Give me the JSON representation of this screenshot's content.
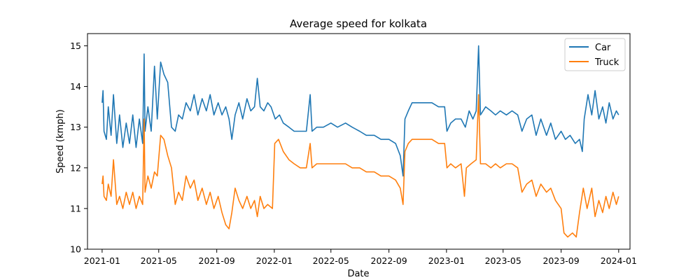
{
  "chart_data": {
    "type": "line",
    "title": "Average speed for kolkata",
    "xlabel": "Date",
    "ylabel": "Speed (kmph)",
    "x_range": [
      "2020-12-01",
      "2024-01-25"
    ],
    "ylim": [
      10.0,
      15.3
    ],
    "x_ticks": [
      "2021-01",
      "2021-05",
      "2021-09",
      "2022-01",
      "2022-05",
      "2022-09",
      "2023-01",
      "2023-05",
      "2023-09",
      "2024-01"
    ],
    "y_ticks": [
      10,
      11,
      12,
      13,
      14,
      15
    ],
    "grid": false,
    "legend_position": "top-right",
    "series": [
      {
        "name": "Car",
        "color": "#1f77b4",
        "points": [
          [
            "2021-01-01",
            13.6
          ],
          [
            "2021-01-03",
            13.9
          ],
          [
            "2021-01-05",
            12.9
          ],
          [
            "2021-01-10",
            12.7
          ],
          [
            "2021-01-14",
            13.5
          ],
          [
            "2021-01-20",
            12.8
          ],
          [
            "2021-01-25",
            13.8
          ],
          [
            "2021-02-01",
            12.6
          ],
          [
            "2021-02-07",
            13.3
          ],
          [
            "2021-02-14",
            12.5
          ],
          [
            "2021-02-21",
            13.1
          ],
          [
            "2021-02-28",
            12.6
          ],
          [
            "2021-03-07",
            13.3
          ],
          [
            "2021-03-14",
            12.5
          ],
          [
            "2021-03-21",
            13.2
          ],
          [
            "2021-03-28",
            12.6
          ],
          [
            "2021-03-31",
            14.8
          ],
          [
            "2021-04-02",
            12.9
          ],
          [
            "2021-04-08",
            13.5
          ],
          [
            "2021-04-15",
            12.9
          ],
          [
            "2021-04-22",
            14.5
          ],
          [
            "2021-04-28",
            13.2
          ],
          [
            "2021-05-05",
            14.6
          ],
          [
            "2021-05-12",
            14.3
          ],
          [
            "2021-05-20",
            14.1
          ],
          [
            "2021-05-28",
            13.0
          ],
          [
            "2021-06-05",
            12.9
          ],
          [
            "2021-06-12",
            13.3
          ],
          [
            "2021-06-20",
            13.2
          ],
          [
            "2021-06-28",
            13.6
          ],
          [
            "2021-07-07",
            13.4
          ],
          [
            "2021-07-15",
            13.8
          ],
          [
            "2021-07-23",
            13.3
          ],
          [
            "2021-08-01",
            13.7
          ],
          [
            "2021-08-10",
            13.4
          ],
          [
            "2021-08-18",
            13.8
          ],
          [
            "2021-08-26",
            13.3
          ],
          [
            "2021-09-04",
            13.6
          ],
          [
            "2021-09-12",
            13.3
          ],
          [
            "2021-09-20",
            13.5
          ],
          [
            "2021-09-27",
            13.2
          ],
          [
            "2021-10-03",
            12.7
          ],
          [
            "2021-10-10",
            13.3
          ],
          [
            "2021-10-18",
            13.6
          ],
          [
            "2021-10-26",
            13.2
          ],
          [
            "2021-11-04",
            13.7
          ],
          [
            "2021-11-12",
            13.4
          ],
          [
            "2021-11-20",
            13.5
          ],
          [
            "2021-11-26",
            14.2
          ],
          [
            "2021-12-02",
            13.5
          ],
          [
            "2021-12-10",
            13.4
          ],
          [
            "2021-12-18",
            13.6
          ],
          [
            "2021-12-25",
            13.5
          ],
          [
            "2022-01-03",
            13.2
          ],
          [
            "2022-01-12",
            13.3
          ],
          [
            "2022-01-20",
            13.1
          ],
          [
            "2022-02-01",
            13.0
          ],
          [
            "2022-02-12",
            12.9
          ],
          [
            "2022-02-25",
            12.9
          ],
          [
            "2022-03-10",
            12.9
          ],
          [
            "2022-03-18",
            13.8
          ],
          [
            "2022-03-22",
            12.9
          ],
          [
            "2022-04-01",
            13.0
          ],
          [
            "2022-04-15",
            13.0
          ],
          [
            "2022-05-01",
            13.1
          ],
          [
            "2022-05-15",
            13.0
          ],
          [
            "2022-06-01",
            13.1
          ],
          [
            "2022-06-15",
            13.0
          ],
          [
            "2022-07-01",
            12.9
          ],
          [
            "2022-07-15",
            12.8
          ],
          [
            "2022-08-01",
            12.8
          ],
          [
            "2022-08-15",
            12.7
          ],
          [
            "2022-09-01",
            12.7
          ],
          [
            "2022-09-15",
            12.6
          ],
          [
            "2022-09-25",
            12.3
          ],
          [
            "2022-10-01",
            11.8
          ],
          [
            "2022-10-05",
            13.2
          ],
          [
            "2022-10-12",
            13.4
          ],
          [
            "2022-10-20",
            13.6
          ],
          [
            "2022-11-01",
            13.6
          ],
          [
            "2022-11-15",
            13.6
          ],
          [
            "2022-12-01",
            13.6
          ],
          [
            "2022-12-15",
            13.5
          ],
          [
            "2022-12-28",
            13.5
          ],
          [
            "2023-01-02",
            12.9
          ],
          [
            "2023-01-10",
            13.1
          ],
          [
            "2023-01-20",
            13.2
          ],
          [
            "2023-02-01",
            13.2
          ],
          [
            "2023-02-10",
            13.0
          ],
          [
            "2023-02-18",
            13.4
          ],
          [
            "2023-02-26",
            13.2
          ],
          [
            "2023-03-05",
            13.4
          ],
          [
            "2023-03-10",
            15.0
          ],
          [
            "2023-03-14",
            13.3
          ],
          [
            "2023-03-25",
            13.5
          ],
          [
            "2023-04-05",
            13.4
          ],
          [
            "2023-04-15",
            13.3
          ],
          [
            "2023-04-25",
            13.4
          ],
          [
            "2023-05-08",
            13.3
          ],
          [
            "2023-05-20",
            13.4
          ],
          [
            "2023-06-01",
            13.3
          ],
          [
            "2023-06-10",
            12.9
          ],
          [
            "2023-06-20",
            13.2
          ],
          [
            "2023-07-01",
            13.3
          ],
          [
            "2023-07-10",
            12.8
          ],
          [
            "2023-07-20",
            13.2
          ],
          [
            "2023-08-01",
            12.8
          ],
          [
            "2023-08-10",
            13.1
          ],
          [
            "2023-08-20",
            12.7
          ],
          [
            "2023-09-01",
            12.9
          ],
          [
            "2023-09-10",
            12.7
          ],
          [
            "2023-09-20",
            12.8
          ],
          [
            "2023-10-01",
            12.6
          ],
          [
            "2023-10-10",
            12.7
          ],
          [
            "2023-10-16",
            12.4
          ],
          [
            "2023-10-20",
            13.2
          ],
          [
            "2023-10-28",
            13.8
          ],
          [
            "2023-11-05",
            13.3
          ],
          [
            "2023-11-12",
            13.9
          ],
          [
            "2023-11-20",
            13.2
          ],
          [
            "2023-11-28",
            13.5
          ],
          [
            "2023-12-05",
            13.1
          ],
          [
            "2023-12-12",
            13.6
          ],
          [
            "2023-12-20",
            13.2
          ],
          [
            "2023-12-27",
            13.4
          ],
          [
            "2024-01-01",
            13.3
          ]
        ]
      },
      {
        "name": "Truck",
        "color": "#ff7f0e",
        "points": [
          [
            "2021-01-01",
            11.6
          ],
          [
            "2021-01-03",
            11.8
          ],
          [
            "2021-01-05",
            11.3
          ],
          [
            "2021-01-10",
            11.2
          ],
          [
            "2021-01-14",
            11.6
          ],
          [
            "2021-01-20",
            11.3
          ],
          [
            "2021-01-25",
            12.2
          ],
          [
            "2021-02-01",
            11.1
          ],
          [
            "2021-02-07",
            11.3
          ],
          [
            "2021-02-14",
            11.0
          ],
          [
            "2021-02-21",
            11.4
          ],
          [
            "2021-02-28",
            11.1
          ],
          [
            "2021-03-07",
            11.4
          ],
          [
            "2021-03-14",
            11.0
          ],
          [
            "2021-03-21",
            11.3
          ],
          [
            "2021-03-28",
            11.1
          ],
          [
            "2021-03-31",
            13.2
          ],
          [
            "2021-04-02",
            11.4
          ],
          [
            "2021-04-08",
            11.8
          ],
          [
            "2021-04-15",
            11.5
          ],
          [
            "2021-04-22",
            11.9
          ],
          [
            "2021-04-28",
            11.8
          ],
          [
            "2021-05-05",
            12.8
          ],
          [
            "2021-05-12",
            12.7
          ],
          [
            "2021-05-20",
            12.3
          ],
          [
            "2021-05-28",
            12.0
          ],
          [
            "2021-06-05",
            11.1
          ],
          [
            "2021-06-12",
            11.4
          ],
          [
            "2021-06-20",
            11.2
          ],
          [
            "2021-06-28",
            11.8
          ],
          [
            "2021-07-07",
            11.5
          ],
          [
            "2021-07-15",
            11.7
          ],
          [
            "2021-07-23",
            11.2
          ],
          [
            "2021-08-01",
            11.5
          ],
          [
            "2021-08-10",
            11.1
          ],
          [
            "2021-08-18",
            11.4
          ],
          [
            "2021-08-26",
            11.0
          ],
          [
            "2021-09-04",
            11.3
          ],
          [
            "2021-09-12",
            10.9
          ],
          [
            "2021-09-20",
            10.6
          ],
          [
            "2021-09-27",
            10.5
          ],
          [
            "2021-10-03",
            10.9
          ],
          [
            "2021-10-10",
            11.5
          ],
          [
            "2021-10-18",
            11.2
          ],
          [
            "2021-10-26",
            11.0
          ],
          [
            "2021-11-04",
            11.3
          ],
          [
            "2021-11-12",
            11.0
          ],
          [
            "2021-11-20",
            11.2
          ],
          [
            "2021-11-26",
            10.8
          ],
          [
            "2021-12-02",
            11.3
          ],
          [
            "2021-12-10",
            11.0
          ],
          [
            "2021-12-18",
            11.1
          ],
          [
            "2021-12-28",
            11.0
          ],
          [
            "2022-01-02",
            12.6
          ],
          [
            "2022-01-10",
            12.7
          ],
          [
            "2022-01-20",
            12.4
          ],
          [
            "2022-02-01",
            12.2
          ],
          [
            "2022-02-12",
            12.1
          ],
          [
            "2022-02-25",
            12.0
          ],
          [
            "2022-03-10",
            12.0
          ],
          [
            "2022-03-18",
            12.6
          ],
          [
            "2022-03-22",
            12.0
          ],
          [
            "2022-04-01",
            12.1
          ],
          [
            "2022-04-15",
            12.1
          ],
          [
            "2022-05-01",
            12.1
          ],
          [
            "2022-05-15",
            12.1
          ],
          [
            "2022-06-01",
            12.1
          ],
          [
            "2022-06-15",
            12.0
          ],
          [
            "2022-07-01",
            12.0
          ],
          [
            "2022-07-15",
            11.9
          ],
          [
            "2022-08-01",
            11.9
          ],
          [
            "2022-08-15",
            11.8
          ],
          [
            "2022-09-01",
            11.8
          ],
          [
            "2022-09-15",
            11.7
          ],
          [
            "2022-09-25",
            11.5
          ],
          [
            "2022-10-01",
            11.1
          ],
          [
            "2022-10-05",
            12.4
          ],
          [
            "2022-10-12",
            12.6
          ],
          [
            "2022-10-20",
            12.7
          ],
          [
            "2022-11-01",
            12.7
          ],
          [
            "2022-11-15",
            12.7
          ],
          [
            "2022-12-01",
            12.7
          ],
          [
            "2022-12-15",
            12.6
          ],
          [
            "2022-12-28",
            12.6
          ],
          [
            "2023-01-02",
            12.0
          ],
          [
            "2023-01-10",
            12.1
          ],
          [
            "2023-01-20",
            12.0
          ],
          [
            "2023-02-01",
            12.1
          ],
          [
            "2023-02-08",
            11.3
          ],
          [
            "2023-02-12",
            12.0
          ],
          [
            "2023-02-22",
            12.1
          ],
          [
            "2023-03-05",
            12.2
          ],
          [
            "2023-03-10",
            13.8
          ],
          [
            "2023-03-14",
            12.1
          ],
          [
            "2023-03-25",
            12.1
          ],
          [
            "2023-04-05",
            12.0
          ],
          [
            "2023-04-15",
            12.1
          ],
          [
            "2023-04-25",
            12.0
          ],
          [
            "2023-05-08",
            12.1
          ],
          [
            "2023-05-20",
            12.1
          ],
          [
            "2023-06-01",
            12.0
          ],
          [
            "2023-06-10",
            11.4
          ],
          [
            "2023-06-20",
            11.6
          ],
          [
            "2023-07-01",
            11.7
          ],
          [
            "2023-07-10",
            11.3
          ],
          [
            "2023-07-20",
            11.6
          ],
          [
            "2023-08-01",
            11.4
          ],
          [
            "2023-08-10",
            11.5
          ],
          [
            "2023-08-20",
            11.2
          ],
          [
            "2023-09-01",
            11.0
          ],
          [
            "2023-09-07",
            10.4
          ],
          [
            "2023-09-15",
            10.3
          ],
          [
            "2023-09-25",
            10.4
          ],
          [
            "2023-10-03",
            10.3
          ],
          [
            "2023-10-10",
            10.9
          ],
          [
            "2023-10-18",
            11.5
          ],
          [
            "2023-10-26",
            11.0
          ],
          [
            "2023-11-05",
            11.5
          ],
          [
            "2023-11-12",
            10.8
          ],
          [
            "2023-11-20",
            11.2
          ],
          [
            "2023-11-28",
            10.9
          ],
          [
            "2023-12-05",
            11.3
          ],
          [
            "2023-12-12",
            11.0
          ],
          [
            "2023-12-20",
            11.4
          ],
          [
            "2023-12-27",
            11.1
          ],
          [
            "2024-01-01",
            11.3
          ]
        ]
      }
    ]
  }
}
